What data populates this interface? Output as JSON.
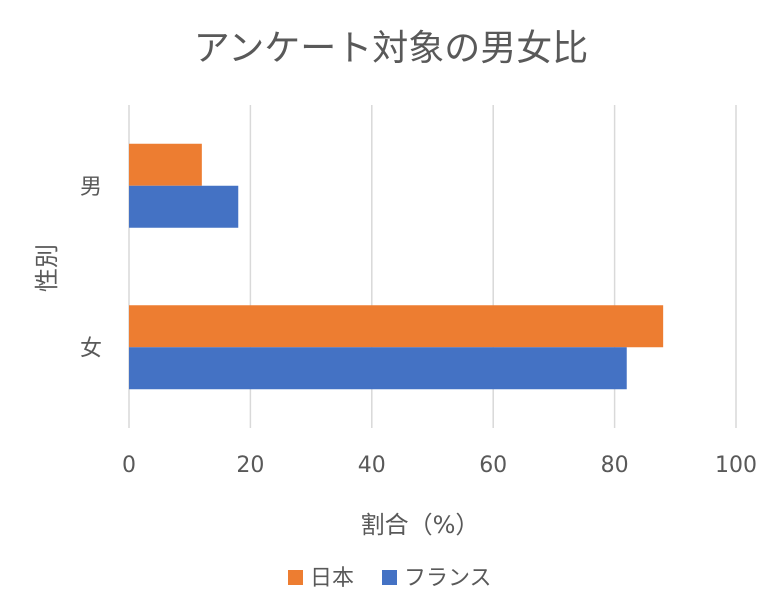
{
  "chart_data": {
    "type": "bar",
    "orientation": "horizontal",
    "title": "アンケート対象の男女比",
    "xlabel": "割合（%）",
    "ylabel": "性別",
    "categories": [
      "男",
      "女"
    ],
    "series": [
      {
        "name": "日本",
        "values": [
          12,
          88
        ],
        "color": "#ED7D31"
      },
      {
        "name": "フランス",
        "values": [
          18,
          82
        ],
        "color": "#4472C4"
      }
    ],
    "xlim": [
      0,
      100
    ],
    "xticks": [
      0,
      20,
      40,
      60,
      80,
      100
    ],
    "grid": true,
    "legend": "bottom"
  }
}
